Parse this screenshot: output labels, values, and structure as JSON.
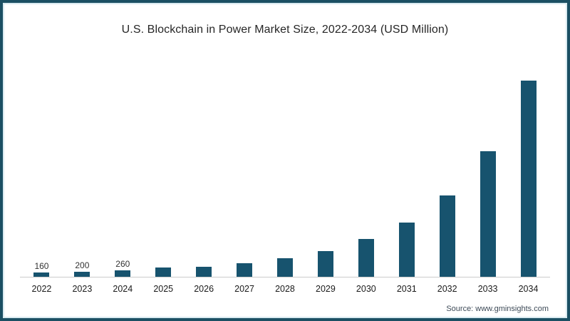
{
  "page": {
    "title": "U.S. Blockchain in Power Market Size, 2022-2034 (USD Million)",
    "source_note": "Source: www.gminsights.com"
  },
  "colors": {
    "bar_fill": "#17536e",
    "outer_border": "#1b4f63",
    "inner_border_line": "#d9eaf0",
    "axis_line": "#cccccc",
    "title_text": "#262626",
    "value_label_text": "#333333",
    "tick_label_text": "#1a1a1a",
    "source_text": "#3d4a57",
    "background": "#ffffff"
  },
  "chart_data": {
    "type": "bar",
    "title": "U.S. Blockchain in Power Market Size, 2022-2034 (USD Million)",
    "xlabel": "",
    "ylabel": "",
    "categories": [
      "2022",
      "2023",
      "2024",
      "2025",
      "2026",
      "2027",
      "2028",
      "2029",
      "2030",
      "2031",
      "2032",
      "2033",
      "2034"
    ],
    "values": [
      160,
      200,
      260,
      350,
      400,
      530,
      720,
      1000,
      1450,
      2100,
      3150,
      4850,
      7600
    ],
    "value_labels_shown": {
      "2022": "160",
      "2023": "200",
      "2024": "260"
    },
    "labeled_note": "Only 2022-2024 bars carry printed data labels; later values estimated from bar heights",
    "ylim": [
      0,
      8000
    ],
    "grid": false,
    "legend": false,
    "y_axis_shown": false,
    "source": "Source: www.gminsights.com"
  }
}
